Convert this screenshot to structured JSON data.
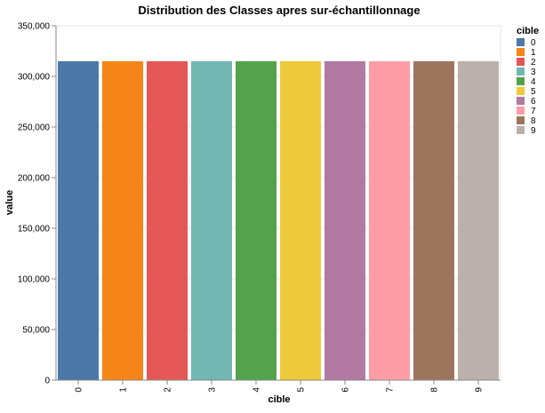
{
  "chart_data": {
    "type": "bar",
    "title": "Distribution des Classes apres sur-échantillonnage",
    "xlabel": "cible",
    "ylabel": "value",
    "categories": [
      "0",
      "1",
      "2",
      "3",
      "4",
      "5",
      "6",
      "7",
      "8",
      "9"
    ],
    "values": [
      315000,
      315000,
      315000,
      315000,
      315000,
      315000,
      315000,
      315000,
      315000,
      315000
    ],
    "ylim": [
      0,
      350000
    ],
    "yticks": [
      0,
      50000,
      100000,
      150000,
      200000,
      250000,
      300000,
      350000
    ],
    "ytick_labels": [
      "0",
      "50,000",
      "100,000",
      "150,000",
      "200,000",
      "250,000",
      "300,000",
      "350,000"
    ],
    "grid": true,
    "legend": {
      "title": "cible",
      "position": "top-right",
      "entries": [
        "0",
        "1",
        "2",
        "3",
        "4",
        "5",
        "6",
        "7",
        "8",
        "9"
      ]
    },
    "colors": [
      "#4c78a8",
      "#f58518",
      "#e45756",
      "#72b7b2",
      "#54a24b",
      "#eeca3b",
      "#b279a2",
      "#ff9da6",
      "#9d755d",
      "#bab0ac"
    ]
  }
}
